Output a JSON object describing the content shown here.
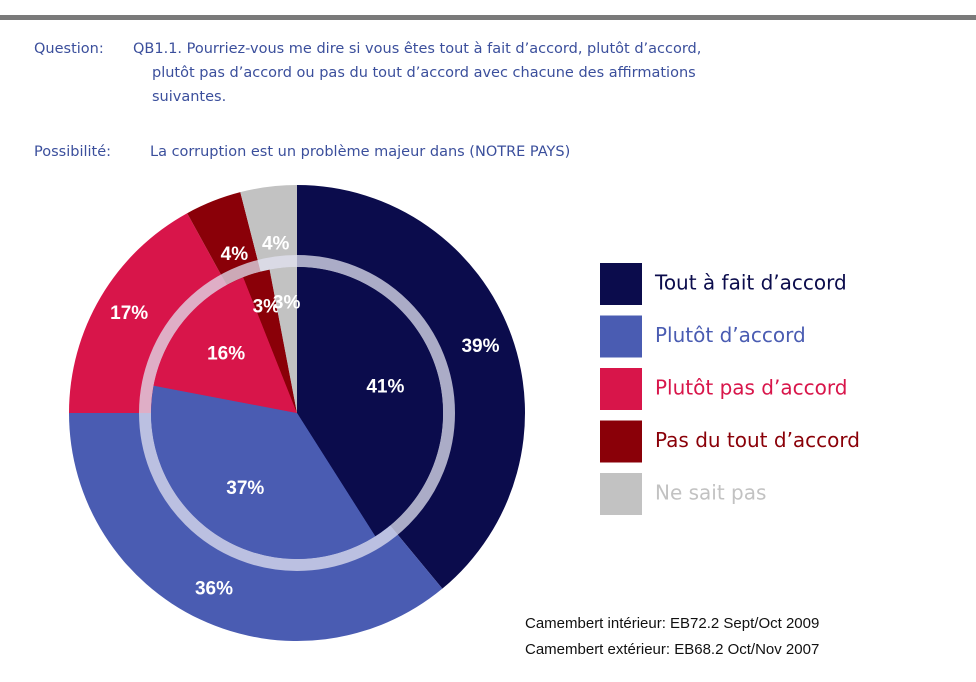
{
  "chart_data": {
    "type": "pie",
    "question_label": "Question:",
    "question": [
      "QB1.1. Pourriez-vous me dire si vous êtes tout à fait d’accord, plutôt d’accord,",
      "plutôt pas d’accord ou pas du tout d’accord avec chacune des affirmations",
      "suivantes."
    ],
    "possibility_label": "Possibilité:",
    "possibility": "La corruption est un problème majeur dans (NOTRE PAYS)",
    "categories": [
      "Tout à fait d’accord",
      "Plutôt d’accord",
      "Plutôt pas d’accord",
      "Pas du tout d’accord",
      "Ne sait pas"
    ],
    "colors": [
      "#0b0c4c",
      "#4a5cb2",
      "#d8154a",
      "#8a0008",
      "#c2c2c2"
    ],
    "series": [
      {
        "name": "Camembert intérieur: EB72.2 Sept/Oct 2009",
        "values": [
          41,
          37,
          16,
          3,
          3
        ],
        "value_labels": [
          "41%",
          "37%",
          "16%",
          "3%",
          "3%"
        ]
      },
      {
        "name": "Camembert extérieur: EB68.2 Oct/Nov 2007",
        "values": [
          39,
          36,
          17,
          4,
          4
        ],
        "value_labels": [
          "39%",
          "36%",
          "17%",
          "4%",
          "4%"
        ]
      }
    ]
  }
}
